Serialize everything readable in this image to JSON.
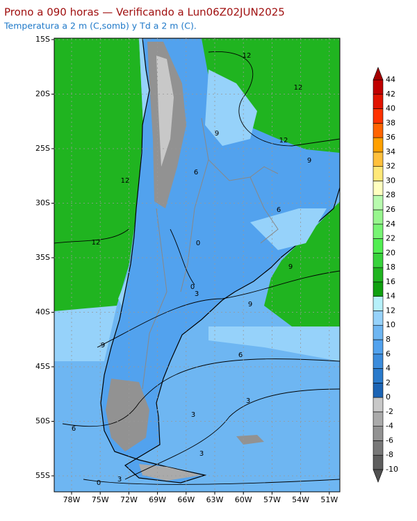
{
  "header": {
    "title": "Prono a 090 horas — Verificando a Lun06Z02JUN2025",
    "subtitle": "Temperatura a 2 m (C,somb) y Td a 2 m (C)."
  },
  "map": {
    "lat_labels": [
      "15S",
      "20S",
      "25S",
      "30S",
      "35S",
      "40S",
      "45S",
      "50S",
      "55S"
    ],
    "lon_labels": [
      "78W",
      "75W",
      "72W",
      "69W",
      "66W",
      "63W",
      "60W",
      "57W",
      "54W",
      "51W"
    ],
    "contour_labels": [
      "12",
      "12",
      "12",
      "12",
      "12",
      "9",
      "9",
      "9",
      "9",
      "9",
      "6",
      "6",
      "6",
      "6",
      "3",
      "3",
      "3",
      "3",
      "3",
      "0",
      "0",
      "0"
    ]
  },
  "colorbar": {
    "levels": [
      -10,
      -8,
      -6,
      -4,
      -2,
      0,
      2,
      4,
      6,
      8,
      10,
      12,
      14,
      16,
      18,
      20,
      22,
      24,
      26,
      28,
      30,
      32,
      34,
      36,
      38,
      40,
      42,
      44
    ],
    "colors": [
      "#5e5e5e",
      "#787878",
      "#929292",
      "#aaaaaa",
      "#c8c8c8",
      "#1c64b4",
      "#2a7acb",
      "#3c8cdc",
      "#52a2ee",
      "#6eb6f2",
      "#96d2fa",
      "#b6f0fa",
      "#10a010",
      "#20b420",
      "#38d23c",
      "#52ee52",
      "#78f474",
      "#98f68e",
      "#b8faae",
      "#ffffc0",
      "#ffe878",
      "#ffc03c",
      "#ffa000",
      "#ff6400",
      "#ff3200",
      "#e11400",
      "#c00000"
    ],
    "under_color": "#505050",
    "over_color": "#a50000"
  }
}
